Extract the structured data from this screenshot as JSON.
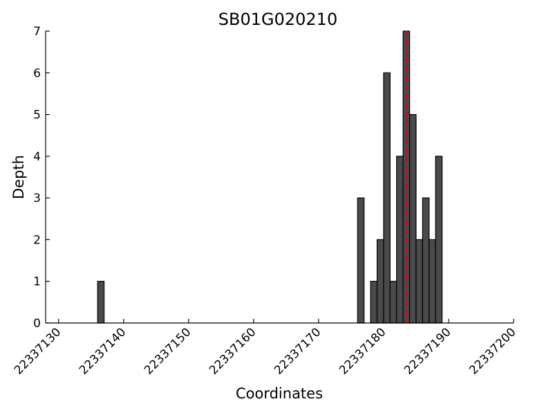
{
  "chart_data": {
    "type": "bar",
    "title": "SB01G020210",
    "xlabel": "Coordinates",
    "ylabel": "Depth",
    "xlim": [
      22337128,
      22337200
    ],
    "ylim": [
      0,
      7
    ],
    "x_ticks": [
      "22337130",
      "22337140",
      "22337150",
      "22337160",
      "22337170",
      "22337180",
      "22337190",
      "22337200"
    ],
    "y_ticks": [
      "0",
      "1",
      "2",
      "3",
      "4",
      "5",
      "6",
      "7"
    ],
    "grid": false,
    "bar_color": "#4a4a4a",
    "reference_line": {
      "x": 22337183.5,
      "color": "#e00000",
      "style": "dashed"
    },
    "bars": [
      {
        "x": 22337136,
        "value": 1
      },
      {
        "x": 22337176,
        "value": 3
      },
      {
        "x": 22337178,
        "value": 1
      },
      {
        "x": 22337179,
        "value": 2
      },
      {
        "x": 22337180,
        "value": 6
      },
      {
        "x": 22337181,
        "value": 1
      },
      {
        "x": 22337182,
        "value": 4
      },
      {
        "x": 22337183,
        "value": 7
      },
      {
        "x": 22337184,
        "value": 5
      },
      {
        "x": 22337185,
        "value": 2
      },
      {
        "x": 22337186,
        "value": 3
      },
      {
        "x": 22337187,
        "value": 2
      },
      {
        "x": 22337188,
        "value": 4
      }
    ]
  }
}
